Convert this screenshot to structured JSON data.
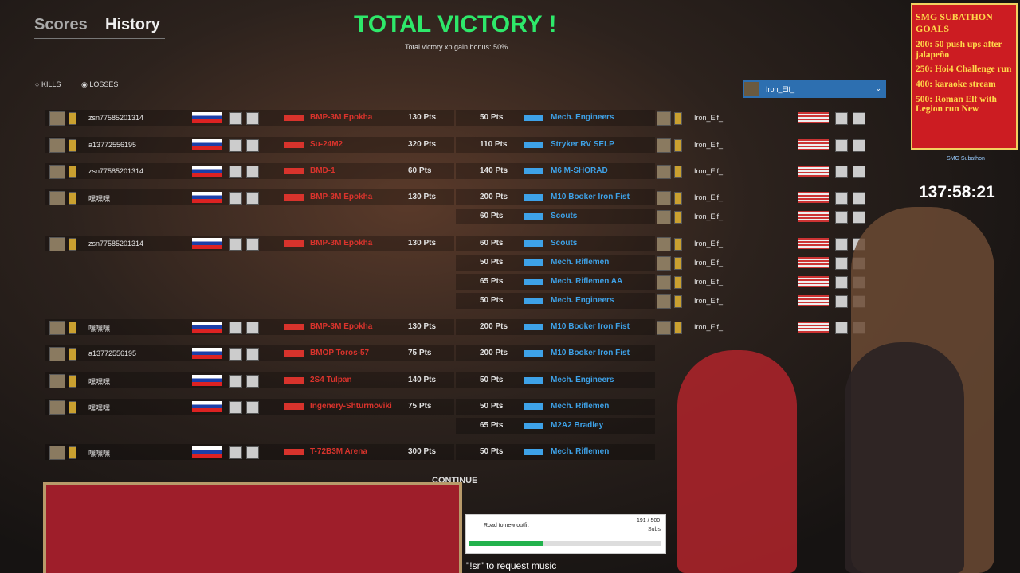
{
  "header": {
    "tabs": [
      "Scores",
      "History"
    ],
    "title": "TOTAL VICTORY !",
    "subtitle": "Total victory xp gain bonus: 50%",
    "filters": [
      "KILLS",
      "LOSSES"
    ],
    "player_select": "Iron_Elf_"
  },
  "rows": [
    {
      "left_player": "zsn77585201314",
      "left_unit": "BMP-3M Epokha",
      "left_pts": "130 Pts",
      "right_pts": "50 Pts",
      "right_unit": "Mech. Engineers",
      "right_player": "Iron_Elf_"
    },
    {
      "left_player": "a13772556195",
      "left_unit": "Su-24M2",
      "left_pts": "320 Pts",
      "right_pts": "110 Pts",
      "right_unit": "Stryker RV SELP",
      "right_player": "Iron_Elf_"
    },
    {
      "left_player": "zsn77585201314",
      "left_unit": "BMD-1",
      "left_pts": "60 Pts",
      "right_pts": "140 Pts",
      "right_unit": "M6 M-SHORAD",
      "right_player": "Iron_Elf_"
    },
    {
      "left_player": "嘿嘿嘿",
      "left_unit": "BMP-3M Epokha",
      "left_pts": "130 Pts",
      "right_pts": "200 Pts",
      "right_unit": "M10 Booker Iron Fist",
      "right_player": "Iron_Elf_"
    },
    {
      "right_pts": "60 Pts",
      "right_unit": "Scouts",
      "right_player": "Iron_Elf_"
    },
    {
      "left_player": "zsn77585201314",
      "left_unit": "BMP-3M Epokha",
      "left_pts": "130 Pts",
      "right_pts": "60 Pts",
      "right_unit": "Scouts",
      "right_player": "Iron_Elf_"
    },
    {
      "right_pts": "50 Pts",
      "right_unit": "Mech. Riflemen",
      "right_player": "Iron_Elf_"
    },
    {
      "right_pts": "65 Pts",
      "right_unit": "Mech. Riflemen AA",
      "right_player": "Iron_Elf_"
    },
    {
      "right_pts": "50 Pts",
      "right_unit": "Mech. Engineers",
      "right_player": "Iron_Elf_"
    },
    {
      "left_player": "嘿嘿嘿",
      "left_unit": "BMP-3M Epokha",
      "left_pts": "130 Pts",
      "right_pts": "200 Pts",
      "right_unit": "M10 Booker Iron Fist",
      "right_player": "Iron_Elf_"
    },
    {
      "left_player": "a13772556195",
      "left_unit": "BMOP Toros-57",
      "left_pts": "75 Pts",
      "right_pts": "200 Pts",
      "right_unit": "M10 Booker Iron Fist"
    },
    {
      "left_player": "嘿嘿嘿",
      "left_unit": "2S4 Tulpan",
      "left_pts": "140 Pts",
      "right_pts": "50 Pts",
      "right_unit": "Mech. Engineers"
    },
    {
      "left_player": "嘿嘿嘿",
      "left_unit": "Ingenery-Shturmoviki",
      "left_pts": "75 Pts",
      "right_pts": "50 Pts",
      "right_unit": "Mech. Riflemen"
    },
    {
      "right_pts": "65 Pts",
      "right_unit": "M2A2 Bradley"
    },
    {
      "left_player": "嘿嘿嘿",
      "left_unit": "T-72B3M Arena",
      "left_pts": "300 Pts",
      "right_pts": "50 Pts",
      "right_unit": "Mech. Riflemen"
    }
  ],
  "continue": "CONTINUE",
  "overlay": {
    "goals_title": "SMG SUBATHON GOALS",
    "goals": [
      "200: 50 push ups after jalapeño",
      "250: Hoi4 Challenge run",
      "400: karaoke stream",
      "500: Roman Elf with Legion run New"
    ],
    "timer_label": "SMG Subathon",
    "timer": "137:58:21",
    "outfit_label": "Road to new outfit",
    "outfit_count": "191 / 500",
    "outfit_unit": "Subs",
    "music": "\"!sr\" to request music"
  }
}
